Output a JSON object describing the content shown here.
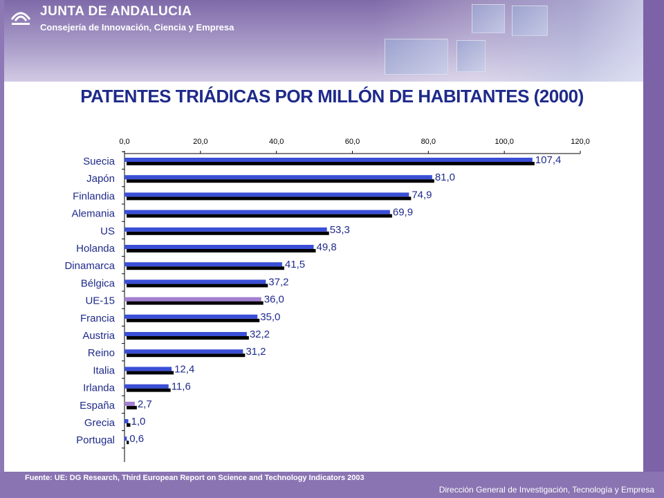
{
  "header": {
    "org_name": "JUNTA DE ANDALUCIA",
    "department": "Consejería de Innovación, Ciencia y Empresa"
  },
  "footer": {
    "source": "Fuente: UE: DG Research, Third European Report on Science and Technology Indicators 2003",
    "credit": "Dirección General de Investigación, Tecnología y Empresa"
  },
  "colors": {
    "bar_default": "#3a4fd6",
    "bar_highlight": "#a27fd0",
    "shadow": "#000000",
    "title": "#1e2a8a"
  },
  "chart_data": {
    "type": "bar",
    "orientation": "horizontal",
    "title": "PATENTES TRIÁDICAS POR MILLÓN DE HABITANTES (2000)",
    "xlabel": "",
    "ylabel": "",
    "xlim": [
      0,
      120
    ],
    "x_ticks": [
      "0,0",
      "20,0",
      "40,0",
      "60,0",
      "80,0",
      "100,0",
      "120,0"
    ],
    "x_tick_values": [
      0,
      20,
      40,
      60,
      80,
      100,
      120
    ],
    "categories": [
      "Suecia",
      "Japón",
      "Finlandia",
      "Alemania",
      "US",
      "Holanda",
      "Dinamarca",
      "Bélgica",
      "UE-15",
      "Francia",
      "Austria",
      "Reino",
      "Italia",
      "Irlanda",
      "España",
      "Grecia",
      "Portugal"
    ],
    "values": [
      107.4,
      81.0,
      74.9,
      69.9,
      53.3,
      49.8,
      41.5,
      37.2,
      36.0,
      35.0,
      32.2,
      31.2,
      12.4,
      11.6,
      2.7,
      1.0,
      0.6
    ],
    "value_labels": [
      "107,4",
      "81,0",
      "74,9",
      "69,9",
      "53,3",
      "49,8",
      "41,5",
      "37,2",
      "36,0",
      "35,0",
      "32,2",
      "31,2",
      "12,4",
      "11,6",
      "2,7",
      "1,0",
      "0,6"
    ],
    "highlighted": [
      "UE-15",
      "España"
    ],
    "grid": false,
    "legend": "none"
  }
}
